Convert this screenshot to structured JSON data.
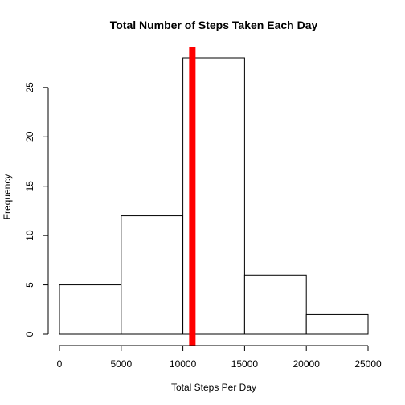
{
  "chart_data": {
    "type": "bar",
    "title": "Total Number of Steps Taken Each Day",
    "xlabel": "Total Steps Per Day",
    "ylabel": "Frequency",
    "bins": [
      {
        "start": 0,
        "end": 5000,
        "count": 5
      },
      {
        "start": 5000,
        "end": 10000,
        "count": 12
      },
      {
        "start": 10000,
        "end": 15000,
        "count": 28
      },
      {
        "start": 15000,
        "end": 20000,
        "count": 6
      },
      {
        "start": 20000,
        "end": 25000,
        "count": 2
      }
    ],
    "xlim": [
      0,
      25000
    ],
    "ylim": [
      0,
      28
    ],
    "x_ticks": [
      "0",
      "5000",
      "10000",
      "15000",
      "20000",
      "25000"
    ],
    "y_ticks": [
      "0",
      "5",
      "10",
      "15",
      "20",
      "25"
    ],
    "bar_fill": "#ffffff",
    "bar_stroke": "#000000",
    "reference_line": {
      "x": 10766,
      "color": "#ff0000"
    },
    "grid": false,
    "legend": "none"
  }
}
